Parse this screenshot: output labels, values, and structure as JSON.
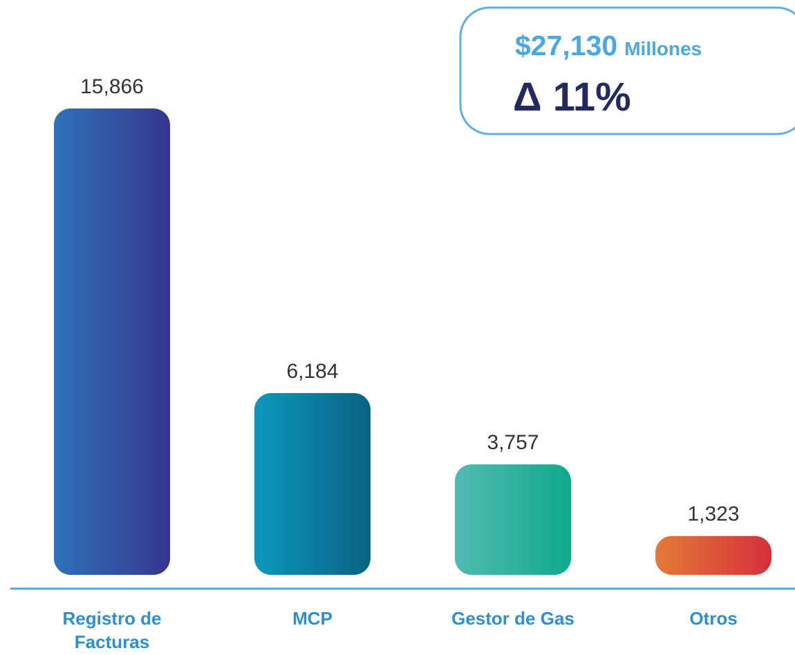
{
  "chart_data": {
    "type": "bar",
    "categories": [
      "Registro de Facturas",
      "MCP",
      "Gestor de Gas",
      "Otros"
    ],
    "values": [
      15866,
      6184,
      3757,
      1323
    ],
    "value_labels": [
      "15,866",
      "6,184",
      "3,757",
      "1,323"
    ],
    "colors": [
      [
        "#2f72b9",
        "#36368f"
      ],
      [
        "#0c97be",
        "#0a6283"
      ],
      [
        "#52bab3",
        "#10aa8a"
      ],
      [
        "#e47a38",
        "#d3303a"
      ]
    ],
    "annotation": {
      "total": "$27,130",
      "unit": "Millones",
      "change": "Δ 11%"
    }
  }
}
